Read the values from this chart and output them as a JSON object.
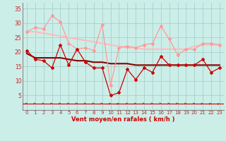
{
  "background_color": "#cceee8",
  "grid_color": "#aad4ce",
  "x_label": "Vent moyen/en rafales ( km/h )",
  "x_ticks": [
    0,
    1,
    2,
    3,
    4,
    5,
    6,
    7,
    8,
    9,
    10,
    11,
    12,
    13,
    14,
    15,
    16,
    17,
    18,
    19,
    20,
    21,
    22,
    23
  ],
  "ylim": [
    0,
    37
  ],
  "yticks": [
    5,
    10,
    15,
    20,
    25,
    30,
    35
  ],
  "xlim": [
    -0.5,
    23.5
  ],
  "line_dark_red_1": [
    20.5,
    17.5,
    17.0,
    14.5,
    22.5,
    15.5,
    21.0,
    16.5,
    14.5,
    14.5,
    5.0,
    6.0,
    14.0,
    10.5,
    14.5,
    13.0,
    18.5,
    15.5,
    15.5,
    15.5,
    15.5,
    17.5,
    13.0,
    14.5
  ],
  "line_dark_red_2": [
    19.5,
    18.0,
    18.0,
    18.0,
    18.0,
    17.5,
    17.0,
    17.0,
    16.5,
    16.5,
    16.0,
    16.0,
    16.0,
    15.5,
    15.5,
    15.5,
    15.5,
    15.5,
    15.5,
    15.5,
    15.5,
    15.5,
    15.5,
    15.5
  ],
  "line_light_red_1": [
    27.0,
    28.5,
    28.0,
    32.5,
    30.5,
    23.0,
    21.0,
    21.5,
    20.5,
    29.5,
    8.5,
    21.5,
    22.0,
    21.5,
    22.5,
    23.0,
    29.0,
    24.5,
    19.0,
    21.0,
    21.0,
    23.0,
    23.0,
    22.5
  ],
  "line_light_red_2": [
    27.0,
    27.0,
    26.5,
    26.0,
    25.5,
    25.0,
    24.5,
    24.0,
    23.5,
    23.0,
    22.5,
    22.0,
    21.5,
    21.5,
    21.0,
    21.0,
    21.0,
    21.0,
    21.0,
    21.0,
    22.0,
    22.5,
    22.5,
    22.5
  ],
  "dark_red_color": "#cc0000",
  "light_red_color": "#ff9999",
  "trend_dark_color": "#880000",
  "trend_light_color": "#ffbbbb",
  "arrow_color": "#dd2222",
  "label_color": "#cc0000",
  "ytick_color": "#cc2222",
  "xtick_color": "#cc2222",
  "arrow_angles": [
    0,
    0,
    0,
    0,
    0,
    0,
    0,
    0,
    0,
    0,
    15,
    30,
    0,
    0,
    -10,
    0,
    -10,
    0,
    0,
    0,
    0,
    20,
    30,
    40
  ]
}
